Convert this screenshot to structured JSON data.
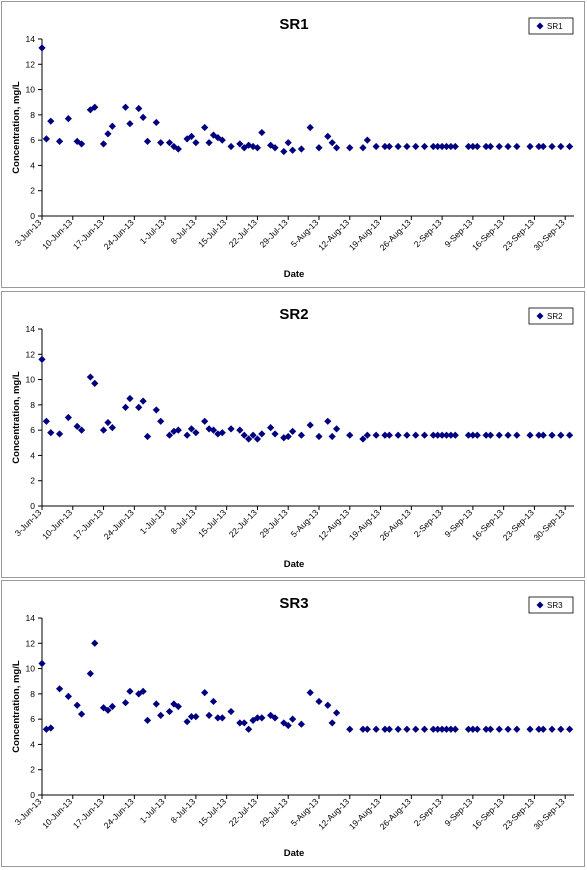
{
  "colors": {
    "marker": "#00007e",
    "axis": "#000000",
    "border": "#9a9a9a"
  },
  "chart_data": [
    {
      "type": "scatter",
      "title": "SR1",
      "xlabel": "Date",
      "ylabel": "Concentration, mg/L",
      "ylim": [
        0,
        14
      ],
      "yticks": [
        "0",
        "2",
        "4",
        "6",
        "8",
        "10",
        "12",
        "14"
      ],
      "xlim": [
        "2013-06-03",
        "2013-10-02"
      ],
      "xticks": [
        "3-Jun-13",
        "10-Jun-13",
        "17-Jun-13",
        "24-Jun-13",
        "1-Jul-13",
        "8-Jul-13",
        "15-Jul-13",
        "22-Jul-13",
        "29-Jul-13",
        "5-Aug-13",
        "12-Aug-13",
        "19-Aug-13",
        "26-Aug-13",
        "2-Sep-13",
        "9-Sep-13",
        "16-Sep-13",
        "23-Sep-13",
        "30-Sep-13"
      ],
      "grid": false,
      "legend_position": "top-right",
      "series": [
        {
          "name": "SR1",
          "x": [
            "2013-06-03",
            "2013-06-04",
            "2013-06-05",
            "2013-06-07",
            "2013-06-09",
            "2013-06-11",
            "2013-06-12",
            "2013-06-14",
            "2013-06-15",
            "2013-06-17",
            "2013-06-18",
            "2013-06-19",
            "2013-06-22",
            "2013-06-23",
            "2013-06-25",
            "2013-06-26",
            "2013-06-27",
            "2013-06-29",
            "2013-06-30",
            "2013-07-02",
            "2013-07-03",
            "2013-07-04",
            "2013-07-06",
            "2013-07-07",
            "2013-07-08",
            "2013-07-10",
            "2013-07-11",
            "2013-07-12",
            "2013-07-13",
            "2013-07-14",
            "2013-07-16",
            "2013-07-18",
            "2013-07-19",
            "2013-07-20",
            "2013-07-21",
            "2013-07-22",
            "2013-07-23",
            "2013-07-25",
            "2013-07-26",
            "2013-07-28",
            "2013-07-29",
            "2013-07-30",
            "2013-08-01",
            "2013-08-03",
            "2013-08-05",
            "2013-08-07",
            "2013-08-08",
            "2013-08-09",
            "2013-08-12",
            "2013-08-15",
            "2013-08-16",
            "2013-08-18",
            "2013-08-20",
            "2013-08-21",
            "2013-08-23",
            "2013-08-25",
            "2013-08-27",
            "2013-08-29",
            "2013-08-31",
            "2013-09-01",
            "2013-09-02",
            "2013-09-03",
            "2013-09-04",
            "2013-09-05",
            "2013-09-08",
            "2013-09-09",
            "2013-09-10",
            "2013-09-12",
            "2013-09-13",
            "2013-09-15",
            "2013-09-17",
            "2013-09-19",
            "2013-09-22",
            "2013-09-24",
            "2013-09-25",
            "2013-09-27",
            "2013-09-29",
            "2013-10-01"
          ],
          "y": [
            13.3,
            6.1,
            7.5,
            5.9,
            7.7,
            5.9,
            5.7,
            8.4,
            8.6,
            5.7,
            6.5,
            7.1,
            8.6,
            7.3,
            8.5,
            7.8,
            5.9,
            7.4,
            5.8,
            5.8,
            5.5,
            5.3,
            6.1,
            6.3,
            5.8,
            7.0,
            5.8,
            6.4,
            6.2,
            6.0,
            5.5,
            5.7,
            5.4,
            5.6,
            5.5,
            5.4,
            6.6,
            5.6,
            5.4,
            5.1,
            5.8,
            5.2,
            5.3,
            7.0,
            5.4,
            6.3,
            5.8,
            5.4,
            5.4,
            5.4,
            6.0,
            5.5,
            5.5,
            5.5,
            5.5,
            5.5,
            5.5,
            5.5,
            5.5,
            5.5,
            5.5,
            5.5,
            5.5,
            5.5,
            5.5,
            5.5,
            5.5,
            5.5,
            5.5,
            5.5,
            5.5,
            5.5,
            5.5,
            5.5,
            5.5,
            5.5,
            5.5,
            5.5
          ]
        }
      ]
    },
    {
      "type": "scatter",
      "title": "SR2",
      "xlabel": "Date",
      "ylabel": "Concentration, mg/L",
      "ylim": [
        0,
        14
      ],
      "yticks": [
        "0",
        "2",
        "4",
        "6",
        "8",
        "10",
        "12",
        "14"
      ],
      "xlim": [
        "2013-06-03",
        "2013-10-02"
      ],
      "xticks": [
        "3-Jun-13",
        "10-Jun-13",
        "17-Jun-13",
        "24-Jun-13",
        "1-Jul-13",
        "8-Jul-13",
        "15-Jul-13",
        "22-Jul-13",
        "29-Jul-13",
        "5-Aug-13",
        "12-Aug-13",
        "19-Aug-13",
        "26-Aug-13",
        "2-Sep-13",
        "9-Sep-13",
        "16-Sep-13",
        "23-Sep-13",
        "30-Sep-13"
      ],
      "grid": false,
      "legend_position": "top-right",
      "series": [
        {
          "name": "SR2",
          "x": [
            "2013-06-03",
            "2013-06-04",
            "2013-06-05",
            "2013-06-07",
            "2013-06-09",
            "2013-06-11",
            "2013-06-12",
            "2013-06-14",
            "2013-06-15",
            "2013-06-17",
            "2013-06-18",
            "2013-06-19",
            "2013-06-22",
            "2013-06-23",
            "2013-06-25",
            "2013-06-26",
            "2013-06-27",
            "2013-06-29",
            "2013-06-30",
            "2013-07-02",
            "2013-07-03",
            "2013-07-04",
            "2013-07-06",
            "2013-07-07",
            "2013-07-08",
            "2013-07-10",
            "2013-07-11",
            "2013-07-12",
            "2013-07-13",
            "2013-07-14",
            "2013-07-16",
            "2013-07-18",
            "2013-07-19",
            "2013-07-20",
            "2013-07-21",
            "2013-07-22",
            "2013-07-23",
            "2013-07-25",
            "2013-07-26",
            "2013-07-28",
            "2013-07-29",
            "2013-07-30",
            "2013-08-01",
            "2013-08-03",
            "2013-08-05",
            "2013-08-07",
            "2013-08-08",
            "2013-08-09",
            "2013-08-12",
            "2013-08-15",
            "2013-08-16",
            "2013-08-18",
            "2013-08-20",
            "2013-08-21",
            "2013-08-23",
            "2013-08-25",
            "2013-08-27",
            "2013-08-29",
            "2013-08-31",
            "2013-09-01",
            "2013-09-02",
            "2013-09-03",
            "2013-09-04",
            "2013-09-05",
            "2013-09-08",
            "2013-09-09",
            "2013-09-10",
            "2013-09-12",
            "2013-09-13",
            "2013-09-15",
            "2013-09-17",
            "2013-09-19",
            "2013-09-22",
            "2013-09-24",
            "2013-09-25",
            "2013-09-27",
            "2013-09-29",
            "2013-10-01"
          ],
          "y": [
            11.6,
            6.7,
            5.8,
            5.7,
            7.0,
            6.3,
            6.0,
            10.2,
            9.7,
            6.0,
            6.6,
            6.2,
            7.8,
            8.5,
            7.8,
            8.3,
            5.5,
            7.6,
            6.7,
            5.6,
            5.9,
            6.0,
            5.6,
            6.1,
            5.8,
            6.7,
            6.1,
            6.0,
            5.7,
            5.8,
            6.1,
            6.0,
            5.6,
            5.3,
            5.6,
            5.3,
            5.7,
            6.2,
            5.7,
            5.4,
            5.5,
            5.9,
            5.6,
            6.4,
            5.5,
            6.7,
            5.5,
            6.1,
            5.6,
            5.3,
            5.6,
            5.6,
            5.6,
            5.6,
            5.6,
            5.6,
            5.6,
            5.6,
            5.6,
            5.6,
            5.6,
            5.6,
            5.6,
            5.6,
            5.6,
            5.6,
            5.6,
            5.6,
            5.6,
            5.6,
            5.6,
            5.6,
            5.6,
            5.6,
            5.6,
            5.6,
            5.6,
            5.6
          ]
        }
      ]
    },
    {
      "type": "scatter",
      "title": "SR3",
      "xlabel": "Date",
      "ylabel": "Concentration, mg/L",
      "ylim": [
        0,
        14
      ],
      "yticks": [
        "0",
        "2",
        "4",
        "6",
        "8",
        "10",
        "12",
        "14"
      ],
      "xlim": [
        "2013-06-03",
        "2013-10-02"
      ],
      "xticks": [
        "3-Jun-13",
        "10-Jun-13",
        "17-Jun-13",
        "24-Jun-13",
        "1-Jul-13",
        "8-Jul-13",
        "15-Jul-13",
        "22-Jul-13",
        "29-Jul-13",
        "5-Aug-13",
        "12-Aug-13",
        "19-Aug-13",
        "26-Aug-13",
        "2-Sep-13",
        "9-Sep-13",
        "16-Sep-13",
        "23-Sep-13",
        "30-Sep-13"
      ],
      "grid": false,
      "legend_position": "top-right",
      "series": [
        {
          "name": "SR3",
          "x": [
            "2013-06-03",
            "2013-06-04",
            "2013-06-05",
            "2013-06-07",
            "2013-06-09",
            "2013-06-11",
            "2013-06-12",
            "2013-06-14",
            "2013-06-15",
            "2013-06-17",
            "2013-06-18",
            "2013-06-19",
            "2013-06-22",
            "2013-06-23",
            "2013-06-25",
            "2013-06-26",
            "2013-06-27",
            "2013-06-29",
            "2013-06-30",
            "2013-07-02",
            "2013-07-03",
            "2013-07-04",
            "2013-07-06",
            "2013-07-07",
            "2013-07-08",
            "2013-07-10",
            "2013-07-11",
            "2013-07-12",
            "2013-07-13",
            "2013-07-14",
            "2013-07-16",
            "2013-07-18",
            "2013-07-19",
            "2013-07-20",
            "2013-07-21",
            "2013-07-22",
            "2013-07-23",
            "2013-07-25",
            "2013-07-26",
            "2013-07-28",
            "2013-07-29",
            "2013-07-30",
            "2013-08-01",
            "2013-08-03",
            "2013-08-05",
            "2013-08-07",
            "2013-08-08",
            "2013-08-09",
            "2013-08-12",
            "2013-08-15",
            "2013-08-16",
            "2013-08-18",
            "2013-08-20",
            "2013-08-21",
            "2013-08-23",
            "2013-08-25",
            "2013-08-27",
            "2013-08-29",
            "2013-08-31",
            "2013-09-01",
            "2013-09-02",
            "2013-09-03",
            "2013-09-04",
            "2013-09-05",
            "2013-09-08",
            "2013-09-09",
            "2013-09-10",
            "2013-09-12",
            "2013-09-13",
            "2013-09-15",
            "2013-09-17",
            "2013-09-19",
            "2013-09-22",
            "2013-09-24",
            "2013-09-25",
            "2013-09-27",
            "2013-09-29",
            "2013-10-01"
          ],
          "y": [
            10.4,
            5.2,
            5.3,
            8.4,
            7.8,
            7.1,
            6.4,
            9.6,
            12.0,
            6.9,
            6.7,
            7.0,
            7.3,
            8.2,
            8.0,
            8.2,
            5.9,
            7.2,
            6.3,
            6.6,
            7.2,
            7.0,
            5.8,
            6.2,
            6.2,
            8.1,
            6.3,
            7.4,
            6.1,
            6.1,
            6.6,
            5.7,
            5.7,
            5.2,
            5.9,
            6.1,
            6.1,
            6.3,
            6.1,
            5.7,
            5.5,
            6.0,
            5.6,
            8.1,
            7.4,
            7.1,
            5.7,
            6.5,
            5.2,
            5.2,
            5.2,
            5.2,
            5.2,
            5.2,
            5.2,
            5.2,
            5.2,
            5.2,
            5.2,
            5.2,
            5.2,
            5.2,
            5.2,
            5.2,
            5.2,
            5.2,
            5.2,
            5.2,
            5.2,
            5.2,
            5.2,
            5.2,
            5.2,
            5.2,
            5.2,
            5.2,
            5.2,
            5.2
          ]
        }
      ]
    }
  ]
}
